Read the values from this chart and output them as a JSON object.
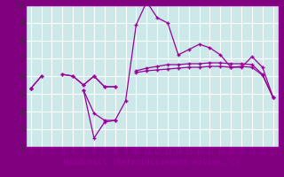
{
  "xlabel": "Windchill (Refroidissement éolien,°C)",
  "bg_color": "#cce8e8",
  "grid_color": "#ffffff",
  "line_color": "#990099",
  "outer_bg": "#800080",
  "x_values": [
    0,
    1,
    2,
    3,
    4,
    5,
    6,
    7,
    8,
    9,
    10,
    11,
    12,
    13,
    14,
    15,
    16,
    17,
    18,
    19,
    20,
    21,
    22,
    23
  ],
  "line1": [
    5.3,
    6.0,
    null,
    6.1,
    6.0,
    5.5,
    6.0,
    5.4,
    5.4,
    null,
    6.2,
    6.3,
    6.35,
    6.4,
    6.45,
    6.5,
    6.5,
    6.55,
    6.55,
    6.5,
    6.55,
    6.5,
    6.05,
    4.8
  ],
  "line2": [
    5.3,
    null,
    null,
    null,
    null,
    5.2,
    3.9,
    3.5,
    3.5,
    4.6,
    8.9,
    10.2,
    9.3,
    9.0,
    7.2,
    7.5,
    7.8,
    7.6,
    7.2,
    6.5,
    6.5,
    7.1,
    6.5,
    4.8
  ],
  "line3": [
    5.3,
    null,
    null,
    null,
    null,
    5.2,
    2.5,
    3.4,
    3.5,
    null,
    null,
    null,
    null,
    null,
    null,
    null,
    null,
    null,
    null,
    null,
    null,
    null,
    null,
    null
  ],
  "line4": [
    5.3,
    6.0,
    null,
    6.1,
    6.0,
    5.5,
    6.0,
    5.4,
    5.4,
    null,
    6.3,
    6.45,
    6.55,
    6.65,
    6.65,
    6.7,
    6.7,
    6.75,
    6.75,
    6.7,
    6.7,
    6.65,
    6.1,
    4.8
  ],
  "ylim": [
    2,
    10
  ],
  "xlim": [
    -0.5,
    23.5
  ],
  "yticks": [
    2,
    3,
    4,
    5,
    6,
    7,
    8,
    9,
    10
  ],
  "xticks": [
    0,
    1,
    2,
    3,
    4,
    5,
    6,
    7,
    8,
    9,
    10,
    11,
    12,
    13,
    14,
    15,
    16,
    17,
    18,
    19,
    20,
    21,
    22,
    23
  ],
  "tick_fontsize": 5.5,
  "xlabel_fontsize": 6.5
}
